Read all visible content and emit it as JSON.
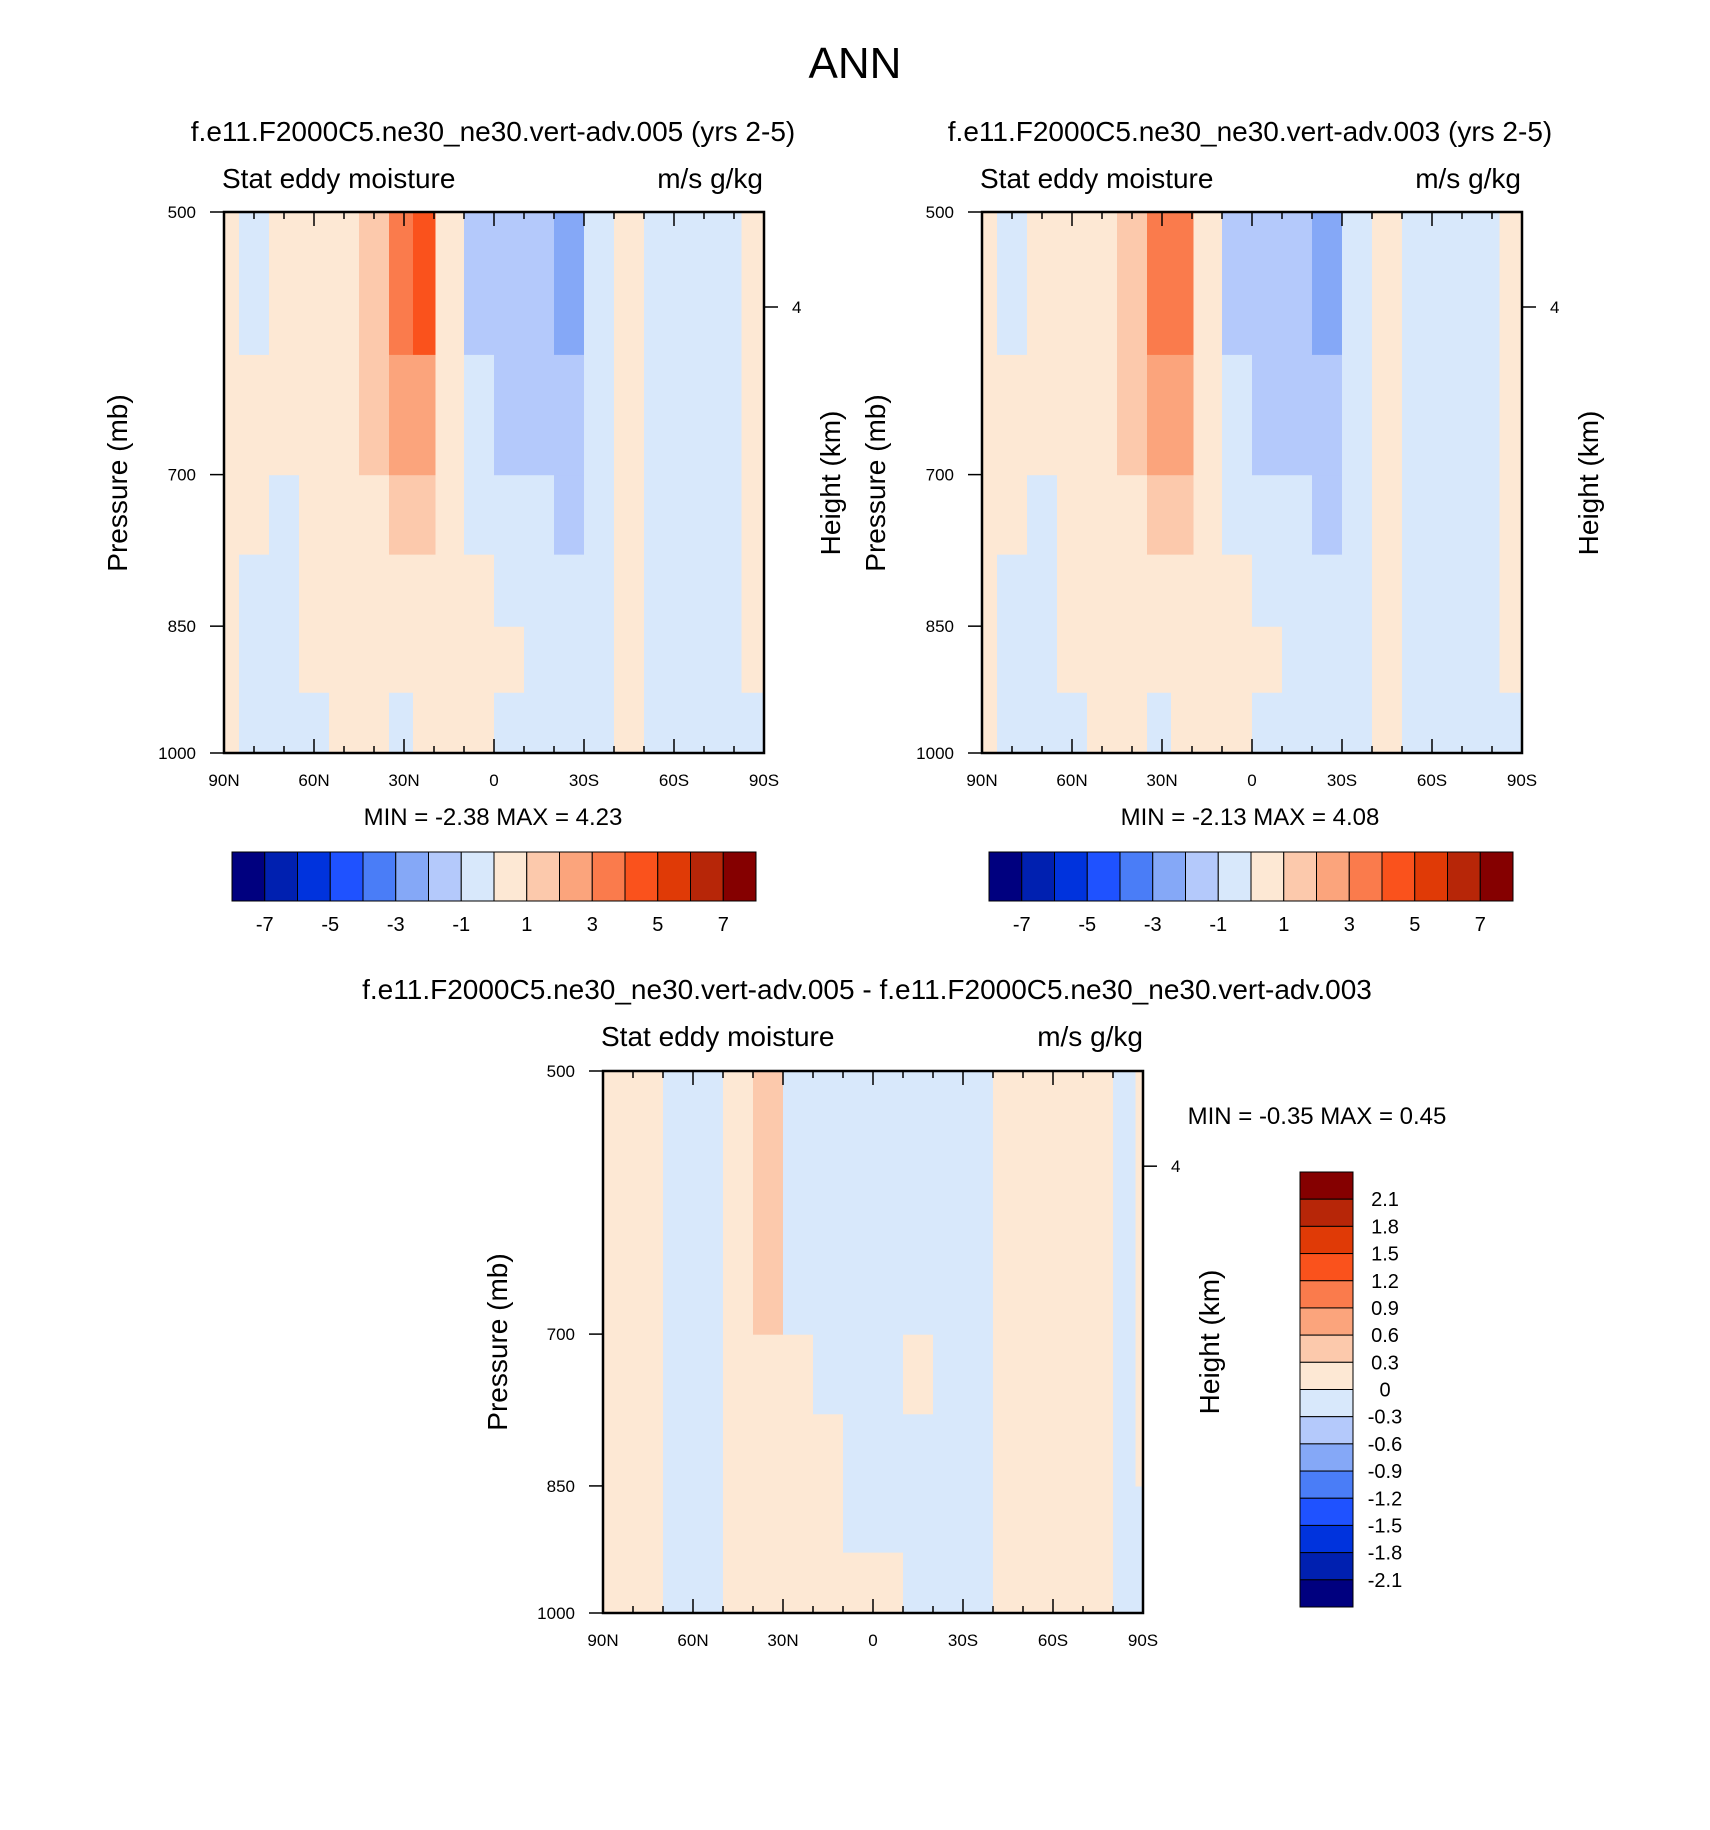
{
  "figure_title": "ANN",
  "colors": {
    "neg": [
      "#00007f",
      "#0020b0",
      "#0033dd",
      "#1f52ff",
      "#4a7df7",
      "#85a8f7",
      "#b4c9fb",
      "#d8e8fb"
    ],
    "pos": [
      "#fde8d4",
      "#fcc9ac",
      "#fba47c",
      "#fa7b4c",
      "#fa521c",
      "#e03a06",
      "#b72608",
      "#850000"
    ]
  },
  "panels": [
    {
      "title": "f.e11.F2000C5.ne30_ne30.vert-adv.005 (yrs 2-5)",
      "left_label": "Stat eddy moisture",
      "right_label": "m/s g/kg",
      "ylabel": "Pressure (mb)",
      "y2label": "Height (km)",
      "minmax": "MIN =  -2.38  MAX =   4.23",
      "xticks": [
        "90N",
        "60N",
        "30N",
        "0",
        "30S",
        "60S",
        "90S"
      ],
      "yticks": [
        "500",
        "700",
        "850",
        "1000"
      ],
      "y2ticks": [
        "4"
      ],
      "colorbar_labels": [
        "-7",
        "-5",
        "-3",
        "-1",
        "1",
        "3",
        "5",
        "7"
      ]
    },
    {
      "title": "f.e11.F2000C5.ne30_ne30.vert-adv.003 (yrs 2-5)",
      "left_label": "Stat eddy moisture",
      "right_label": "m/s g/kg",
      "ylabel": "Pressure (mb)",
      "y2label": "Height (km)",
      "minmax": "MIN =  -2.13  MAX =   4.08",
      "xticks": [
        "90N",
        "60N",
        "30N",
        "0",
        "30S",
        "60S",
        "90S"
      ],
      "yticks": [
        "500",
        "700",
        "850",
        "1000"
      ],
      "y2ticks": [
        "4"
      ],
      "colorbar_labels": [
        "-7",
        "-5",
        "-3",
        "-1",
        "1",
        "3",
        "5",
        "7"
      ]
    },
    {
      "title": "f.e11.F2000C5.ne30_ne30.vert-adv.005 - f.e11.F2000C5.ne30_ne30.vert-adv.003",
      "left_label": "Stat eddy moisture",
      "right_label": "m/s g/kg",
      "ylabel": "Pressure (mb)",
      "y2label": "Height (km)",
      "minmax": "MIN =  -0.35  MAX =   0.45",
      "xticks": [
        "90N",
        "60N",
        "30N",
        "0",
        "30S",
        "60S",
        "90S"
      ],
      "yticks": [
        "500",
        "700",
        "850",
        "1000"
      ],
      "y2ticks": [
        "4"
      ],
      "colorbar_labels": [
        "2.1",
        "1.8",
        "1.5",
        "1.2",
        "0.9",
        "0.6",
        "0.3",
        "0",
        "-0.3",
        "-0.6",
        "-0.9",
        "-1.2",
        "-1.5",
        "-1.8",
        "-2.1"
      ]
    }
  ],
  "chart_data": [
    {
      "type": "heatmap",
      "title": "f.e11.F2000C5.ne30_ne30.vert-adv.005 (yrs 2-5)",
      "variable": "Stat eddy moisture",
      "units": "m/s g/kg",
      "xlabel": "",
      "ylabel": "Pressure (mb)",
      "y2label": "Height (km)",
      "xlim": [
        90,
        -90
      ],
      "ylim": [
        1000,
        500
      ],
      "yscale": "log",
      "levels": [
        -7,
        -6,
        -5,
        -4,
        -3,
        -2,
        -1,
        0,
        1,
        2,
        3,
        4,
        5,
        6,
        7
      ],
      "min": -2.38,
      "max": 4.23,
      "columns": [
        {
          "lat": 90,
          "v": [
            0.3,
            0.3,
            0.3,
            0.3,
            0.3,
            0.3
          ]
        },
        {
          "lat": 80,
          "v": [
            -0.5,
            -0.5,
            -0.5,
            0.3,
            0.3,
            -0.3
          ]
        },
        {
          "lat": 70,
          "v": [
            -0.5,
            -0.5,
            -0.5,
            -0.5,
            0.3,
            0.3
          ]
        },
        {
          "lat": 60,
          "v": [
            -0.5,
            0.3,
            0.3,
            0.3,
            0.3,
            0.3
          ]
        },
        {
          "lat": 50,
          "v": [
            0.3,
            0.3,
            0.3,
            0.3,
            0.3,
            0.3
          ]
        },
        {
          "lat": 40,
          "v": [
            0.3,
            0.3,
            0.3,
            0.5,
            1.5,
            2
          ]
        },
        {
          "lat": 30,
          "v": [
            -0.5,
            0.3,
            0.3,
            1.5,
            2.8,
            3.5
          ]
        },
        {
          "lat": 24,
          "v": [
            0.3,
            0.3,
            0.3,
            1.5,
            2.8,
            4.2
          ]
        },
        {
          "lat": 15,
          "v": [
            0.3,
            0.3,
            0.3,
            0.5,
            0.5,
            0.5
          ]
        },
        {
          "lat": 5,
          "v": [
            0.3,
            0.3,
            0.3,
            -0.5,
            -0.5,
            -1.5
          ]
        },
        {
          "lat": -5,
          "v": [
            -0.5,
            0.3,
            -0.5,
            -0.5,
            -1.5,
            -1.5
          ]
        },
        {
          "lat": -15,
          "v": [
            -0.5,
            -0.5,
            -0.5,
            -0.5,
            -1.5,
            -1.5
          ]
        },
        {
          "lat": -25,
          "v": [
            -0.5,
            -0.5,
            -0.5,
            -1.5,
            -1.5,
            -2.3
          ]
        },
        {
          "lat": -35,
          "v": [
            -0.5,
            -0.5,
            -0.5,
            -0.5,
            -0.5,
            -0.5
          ]
        },
        {
          "lat": -45,
          "v": [
            0.3,
            0.3,
            0.3,
            0.3,
            0.3,
            0.3
          ]
        },
        {
          "lat": -55,
          "v": [
            -0.5,
            -0.5,
            -0.5,
            -0.5,
            -0.5,
            -0.5
          ]
        },
        {
          "lat": -65,
          "v": [
            -0.5,
            -0.5,
            -0.5,
            -0.5,
            -0.5,
            -0.5
          ]
        },
        {
          "lat": -75,
          "v": [
            -0.5,
            -0.5,
            -0.5,
            -0.5,
            -0.5,
            -0.5
          ]
        },
        {
          "lat": -90,
          "v": [
            -0.5,
            0.3,
            0.3,
            0.3,
            0.3,
            0.3
          ]
        }
      ]
    },
    {
      "type": "heatmap",
      "title": "f.e11.F2000C5.ne30_ne30.vert-adv.003 (yrs 2-5)",
      "variable": "Stat eddy moisture",
      "units": "m/s g/kg",
      "xlabel": "",
      "ylabel": "Pressure (mb)",
      "y2label": "Height (km)",
      "xlim": [
        90,
        -90
      ],
      "ylim": [
        1000,
        500
      ],
      "yscale": "log",
      "levels": [
        -7,
        -6,
        -5,
        -4,
        -3,
        -2,
        -1,
        0,
        1,
        2,
        3,
        4,
        5,
        6,
        7
      ],
      "min": -2.13,
      "max": 4.08,
      "columns": [
        {
          "lat": 90,
          "v": [
            0.3,
            0.3,
            0.3,
            0.3,
            0.3,
            0.3
          ]
        },
        {
          "lat": 80,
          "v": [
            -0.5,
            -0.5,
            -0.5,
            0.3,
            0.3,
            -0.3
          ]
        },
        {
          "lat": 70,
          "v": [
            -0.5,
            -0.5,
            -0.5,
            -0.5,
            0.3,
            0.3
          ]
        },
        {
          "lat": 60,
          "v": [
            -0.5,
            0.3,
            0.3,
            0.3,
            0.3,
            0.3
          ]
        },
        {
          "lat": 50,
          "v": [
            0.3,
            0.3,
            0.3,
            0.3,
            0.3,
            0.3
          ]
        },
        {
          "lat": 40,
          "v": [
            0.3,
            0.3,
            0.3,
            0.5,
            1.5,
            2
          ]
        },
        {
          "lat": 30,
          "v": [
            -0.5,
            0.3,
            0.3,
            1.5,
            2.8,
            3.5
          ]
        },
        {
          "lat": 24,
          "v": [
            0.3,
            0.3,
            0.3,
            1.5,
            2.8,
            4
          ]
        },
        {
          "lat": 15,
          "v": [
            0.3,
            0.3,
            0.3,
            0.5,
            0.5,
            0.5
          ]
        },
        {
          "lat": 5,
          "v": [
            0.3,
            0.3,
            0.3,
            -0.5,
            -0.5,
            -1.5
          ]
        },
        {
          "lat": -5,
          "v": [
            -0.5,
            0.3,
            -0.5,
            -0.5,
            -1.5,
            -1.5
          ]
        },
        {
          "lat": -15,
          "v": [
            -0.5,
            -0.5,
            -0.5,
            -0.5,
            -1.5,
            -1.5
          ]
        },
        {
          "lat": -25,
          "v": [
            -0.5,
            -0.5,
            -0.5,
            -1.5,
            -1.5,
            -2.1
          ]
        },
        {
          "lat": -35,
          "v": [
            -0.5,
            -0.5,
            -0.5,
            -0.5,
            -0.5,
            -0.5
          ]
        },
        {
          "lat": -45,
          "v": [
            0.3,
            0.3,
            0.3,
            0.3,
            0.3,
            0.3
          ]
        },
        {
          "lat": -55,
          "v": [
            -0.5,
            -0.5,
            -0.5,
            -0.5,
            -0.5,
            -0.5
          ]
        },
        {
          "lat": -65,
          "v": [
            -0.5,
            -0.5,
            -0.5,
            -0.5,
            -0.5,
            -0.5
          ]
        },
        {
          "lat": -75,
          "v": [
            -0.5,
            -0.5,
            -0.5,
            -0.5,
            -0.5,
            -0.5
          ]
        },
        {
          "lat": -90,
          "v": [
            -0.5,
            0.3,
            0.3,
            0.3,
            0.3,
            0.3
          ]
        }
      ]
    },
    {
      "type": "heatmap",
      "title": "f.e11.F2000C5.ne30_ne30.vert-adv.005 - f.e11.F2000C5.ne30_ne30.vert-adv.003",
      "variable": "Stat eddy moisture",
      "units": "m/s g/kg",
      "xlabel": "",
      "ylabel": "Pressure (mb)",
      "y2label": "Height (km)",
      "xlim": [
        90,
        -90
      ],
      "ylim": [
        1000,
        500
      ],
      "yscale": "log",
      "levels": [
        -2.1,
        -1.8,
        -1.5,
        -1.2,
        -0.9,
        -0.6,
        -0.3,
        0,
        0.3,
        0.6,
        0.9,
        1.2,
        1.5,
        1.8,
        2.1
      ],
      "min": -0.35,
      "max": 0.45,
      "columns": [
        {
          "lat": 90,
          "v": [
            0.1,
            0.1,
            0.1,
            0.1,
            0.1,
            0.1
          ]
        },
        {
          "lat": 75,
          "v": [
            0.1,
            0.1,
            0.1,
            0.1,
            0.1,
            0.1
          ]
        },
        {
          "lat": 65,
          "v": [
            -0.1,
            -0.1,
            -0.1,
            -0.1,
            -0.1,
            -0.1
          ]
        },
        {
          "lat": 55,
          "v": [
            -0.1,
            -0.1,
            -0.1,
            -0.1,
            -0.1,
            -0.1
          ]
        },
        {
          "lat": 45,
          "v": [
            0.1,
            0.1,
            0.1,
            0.1,
            0.1,
            0.1
          ]
        },
        {
          "lat": 35,
          "v": [
            0.1,
            0.1,
            0.1,
            0.1,
            0.35,
            0.4
          ]
        },
        {
          "lat": 25,
          "v": [
            0.1,
            0.1,
            0.1,
            0.1,
            -0.1,
            -0.1
          ]
        },
        {
          "lat": 15,
          "v": [
            0.1,
            0.1,
            0.1,
            -0.1,
            -0.1,
            -0.1
          ]
        },
        {
          "lat": 5,
          "v": [
            0.1,
            -0.1,
            -0.1,
            -0.1,
            -0.1,
            -0.1
          ]
        },
        {
          "lat": -5,
          "v": [
            0.1,
            -0.1,
            -0.1,
            -0.1,
            -0.1,
            -0.1
          ]
        },
        {
          "lat": -15,
          "v": [
            -0.1,
            -0.1,
            -0.1,
            0.1,
            -0.1,
            -0.1
          ]
        },
        {
          "lat": -25,
          "v": [
            -0.1,
            -0.1,
            -0.1,
            -0.1,
            -0.1,
            -0.1
          ]
        },
        {
          "lat": -35,
          "v": [
            -0.1,
            -0.1,
            -0.1,
            -0.1,
            -0.1,
            -0.1
          ]
        },
        {
          "lat": -45,
          "v": [
            0.1,
            0.1,
            0.1,
            0.1,
            0.1,
            0.1
          ]
        },
        {
          "lat": -55,
          "v": [
            0.1,
            0.1,
            0.1,
            0.1,
            0.1,
            0.1
          ]
        },
        {
          "lat": -65,
          "v": [
            0.1,
            0.1,
            0.1,
            0.1,
            0.1,
            0.1
          ]
        },
        {
          "lat": -75,
          "v": [
            0.1,
            0.1,
            0.1,
            0.1,
            0.1,
            0.1
          ]
        },
        {
          "lat": -85,
          "v": [
            -0.1,
            -0.1,
            -0.1,
            -0.1,
            -0.1,
            -0.1
          ]
        },
        {
          "lat": -90,
          "v": [
            -0.1,
            -0.1,
            0.1,
            0.1,
            0.1,
            0.1
          ]
        }
      ]
    }
  ]
}
